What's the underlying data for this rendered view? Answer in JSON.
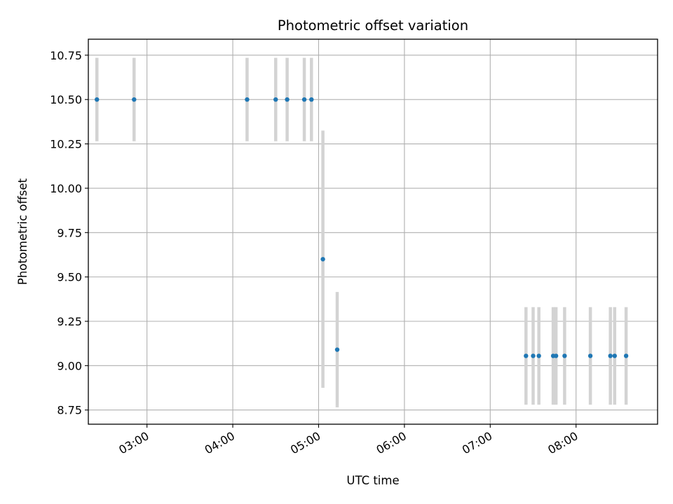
{
  "chart_data": {
    "type": "scatter",
    "title": "Photometric offset variation",
    "xlabel": "UTC time",
    "ylabel": "Photometric offset",
    "grid": true,
    "xlim": [
      "02:19",
      "08:57"
    ],
    "ylim": [
      8.67,
      10.84
    ],
    "x_ticks": [
      "03:00",
      "04:00",
      "05:00",
      "06:00",
      "07:00",
      "08:00"
    ],
    "y_ticks": [
      "8.75",
      "9.00",
      "9.25",
      "9.50",
      "9.75",
      "10.00",
      "10.25",
      "10.50",
      "10.75"
    ],
    "marker_color": "#1f77b4",
    "errorbar_color": "#d3d3d3",
    "series": [
      {
        "points": [
          {
            "x": "02:25",
            "y": 10.5,
            "err": 0.235
          },
          {
            "x": "02:51",
            "y": 10.5,
            "err": 0.235
          },
          {
            "x": "04:10",
            "y": 10.5,
            "err": 0.235
          },
          {
            "x": "04:30",
            "y": 10.5,
            "err": 0.235
          },
          {
            "x": "04:38",
            "y": 10.5,
            "err": 0.235
          },
          {
            "x": "04:50",
            "y": 10.5,
            "err": 0.235
          },
          {
            "x": "04:55",
            "y": 10.5,
            "err": 0.235
          },
          {
            "x": "05:03",
            "y": 9.6,
            "err": 0.725
          },
          {
            "x": "05:13",
            "y": 9.09,
            "err": 0.325
          },
          {
            "x": "07:25",
            "y": 9.055,
            "err": 0.275
          },
          {
            "x": "07:30",
            "y": 9.055,
            "err": 0.275
          },
          {
            "x": "07:34",
            "y": 9.055,
            "err": 0.275
          },
          {
            "x": "07:44",
            "y": 9.055,
            "err": 0.275
          },
          {
            "x": "07:46",
            "y": 9.055,
            "err": 0.275
          },
          {
            "x": "07:52",
            "y": 9.055,
            "err": 0.275
          },
          {
            "x": "08:10",
            "y": 9.055,
            "err": 0.275
          },
          {
            "x": "08:24",
            "y": 9.055,
            "err": 0.275
          },
          {
            "x": "08:27",
            "y": 9.055,
            "err": 0.275
          },
          {
            "x": "08:35",
            "y": 9.055,
            "err": 0.275
          }
        ]
      }
    ]
  }
}
